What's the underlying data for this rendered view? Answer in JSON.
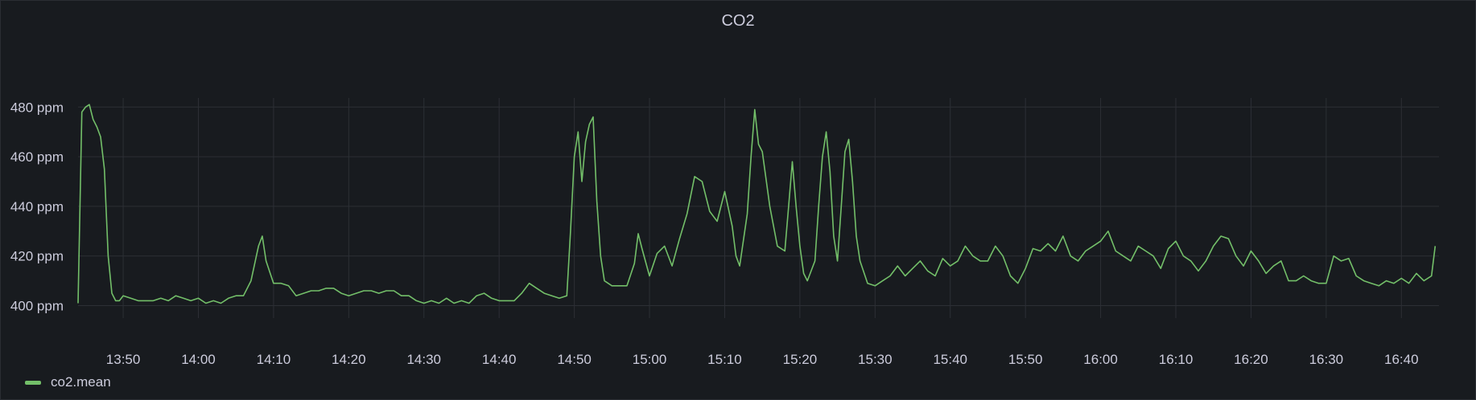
{
  "panel": {
    "title": "CO2"
  },
  "colors": {
    "background": "#181b1f",
    "grid": "#2c2f35",
    "text": "#ccccdc",
    "series": "#73bf69"
  },
  "legend": {
    "label": "co2.mean",
    "placement": "bottom-left"
  },
  "chart_data": {
    "type": "line",
    "title": "CO2",
    "ylabel": "",
    "xlabel": "",
    "unit": "ppm",
    "ylim": [
      395,
      483
    ],
    "xlim": [
      "13:44",
      "16:45"
    ],
    "y_ticks": [
      400,
      420,
      440,
      460,
      480
    ],
    "y_tick_labels": [
      "400 ppm",
      "420 ppm",
      "440 ppm",
      "460 ppm",
      "480 ppm"
    ],
    "x_ticks": [
      "13:50",
      "14:00",
      "14:10",
      "14:20",
      "14:30",
      "14:40",
      "14:50",
      "15:00",
      "15:10",
      "15:20",
      "15:30",
      "15:40",
      "15:50",
      "16:00",
      "16:10",
      "16:20",
      "16:30",
      "16:40"
    ],
    "grid": true,
    "series": [
      {
        "name": "co2.mean",
        "points": [
          [
            "13:44",
            401
          ],
          [
            "13:44.5",
            478
          ],
          [
            "13:45",
            480
          ],
          [
            "13:45.5",
            481
          ],
          [
            "13:46",
            475
          ],
          [
            "13:46.5",
            472
          ],
          [
            "13:47",
            468
          ],
          [
            "13:47.5",
            455
          ],
          [
            "13:48",
            420
          ],
          [
            "13:48.5",
            405
          ],
          [
            "13:49",
            402
          ],
          [
            "13:49.5",
            402
          ],
          [
            "13:50",
            404
          ],
          [
            "13:51",
            403
          ],
          [
            "13:52",
            402
          ],
          [
            "13:53",
            402
          ],
          [
            "13:54",
            402
          ],
          [
            "13:55",
            403
          ],
          [
            "13:56",
            402
          ],
          [
            "13:57",
            404
          ],
          [
            "13:58",
            403
          ],
          [
            "13:59",
            402
          ],
          [
            "14:00",
            403
          ],
          [
            "14:01",
            401
          ],
          [
            "14:02",
            402
          ],
          [
            "14:03",
            401
          ],
          [
            "14:04",
            403
          ],
          [
            "14:05",
            404
          ],
          [
            "14:06",
            404
          ],
          [
            "14:07",
            410
          ],
          [
            "14:08",
            424
          ],
          [
            "14:08.5",
            428
          ],
          [
            "14:09",
            418
          ],
          [
            "14:10",
            409
          ],
          [
            "14:11",
            409
          ],
          [
            "14:12",
            408
          ],
          [
            "14:13",
            404
          ],
          [
            "14:14",
            405
          ],
          [
            "14:15",
            406
          ],
          [
            "14:16",
            406
          ],
          [
            "14:17",
            407
          ],
          [
            "14:18",
            407
          ],
          [
            "14:19",
            405
          ],
          [
            "14:20",
            404
          ],
          [
            "14:21",
            405
          ],
          [
            "14:22",
            406
          ],
          [
            "14:23",
            406
          ],
          [
            "14:24",
            405
          ],
          [
            "14:25",
            406
          ],
          [
            "14:26",
            406
          ],
          [
            "14:27",
            404
          ],
          [
            "14:28",
            404
          ],
          [
            "14:29",
            402
          ],
          [
            "14:30",
            401
          ],
          [
            "14:31",
            402
          ],
          [
            "14:32",
            401
          ],
          [
            "14:33",
            403
          ],
          [
            "14:34",
            401
          ],
          [
            "14:35",
            402
          ],
          [
            "14:36",
            401
          ],
          [
            "14:37",
            404
          ],
          [
            "14:38",
            405
          ],
          [
            "14:39",
            403
          ],
          [
            "14:40",
            402
          ],
          [
            "14:41",
            402
          ],
          [
            "14:42",
            402
          ],
          [
            "14:43",
            405
          ],
          [
            "14:44",
            409
          ],
          [
            "14:45",
            407
          ],
          [
            "14:46",
            405
          ],
          [
            "14:47",
            404
          ],
          [
            "14:48",
            403
          ],
          [
            "14:49",
            404
          ],
          [
            "14:49.5",
            430
          ],
          [
            "14:50",
            460
          ],
          [
            "14:50.5",
            470
          ],
          [
            "14:51",
            450
          ],
          [
            "14:51.5",
            466
          ],
          [
            "14:52",
            473
          ],
          [
            "14:52.5",
            476
          ],
          [
            "14:53",
            442
          ],
          [
            "14:53.5",
            420
          ],
          [
            "14:54",
            410
          ],
          [
            "14:55",
            408
          ],
          [
            "14:56",
            408
          ],
          [
            "14:57",
            408
          ],
          [
            "14:58",
            417
          ],
          [
            "14:58.5",
            429
          ],
          [
            "14:59",
            423
          ],
          [
            "15:00",
            412
          ],
          [
            "15:01",
            421
          ],
          [
            "15:02",
            424
          ],
          [
            "15:03",
            416
          ],
          [
            "15:04",
            427
          ],
          [
            "15:05",
            437
          ],
          [
            "15:06",
            452
          ],
          [
            "15:07",
            450
          ],
          [
            "15:08",
            438
          ],
          [
            "15:09",
            434
          ],
          [
            "15:10",
            446
          ],
          [
            "15:11",
            432
          ],
          [
            "15:11.5",
            420
          ],
          [
            "15:12",
            416
          ],
          [
            "15:13",
            437
          ],
          [
            "15:13.5",
            460
          ],
          [
            "15:14",
            479
          ],
          [
            "15:14.5",
            465
          ],
          [
            "15:15",
            462
          ],
          [
            "15:16",
            440
          ],
          [
            "15:17",
            424
          ],
          [
            "15:18",
            422
          ],
          [
            "15:18.5",
            440
          ],
          [
            "15:19",
            458
          ],
          [
            "15:19.5",
            440
          ],
          [
            "15:20",
            424
          ],
          [
            "15:20.5",
            413
          ],
          [
            "15:21",
            410
          ],
          [
            "15:22",
            418
          ],
          [
            "15:22.5",
            440
          ],
          [
            "15:23",
            460
          ],
          [
            "15:23.5",
            470
          ],
          [
            "15:24",
            454
          ],
          [
            "15:24.5",
            428
          ],
          [
            "15:25",
            418
          ],
          [
            "15:25.5",
            440
          ],
          [
            "15:26",
            462
          ],
          [
            "15:26.5",
            467
          ],
          [
            "15:27",
            450
          ],
          [
            "15:27.5",
            428
          ],
          [
            "15:28",
            418
          ],
          [
            "15:29",
            409
          ],
          [
            "15:30",
            408
          ],
          [
            "15:31",
            410
          ],
          [
            "15:32",
            412
          ],
          [
            "15:33",
            416
          ],
          [
            "15:34",
            412
          ],
          [
            "15:35",
            415
          ],
          [
            "15:36",
            418
          ],
          [
            "15:37",
            414
          ],
          [
            "15:38",
            412
          ],
          [
            "15:39",
            419
          ],
          [
            "15:40",
            416
          ],
          [
            "15:41",
            418
          ],
          [
            "15:42",
            424
          ],
          [
            "15:43",
            420
          ],
          [
            "15:44",
            418
          ],
          [
            "15:45",
            418
          ],
          [
            "15:46",
            424
          ],
          [
            "15:47",
            420
          ],
          [
            "15:48",
            412
          ],
          [
            "15:49",
            409
          ],
          [
            "15:50",
            415
          ],
          [
            "15:51",
            423
          ],
          [
            "15:52",
            422
          ],
          [
            "15:53",
            425
          ],
          [
            "15:54",
            422
          ],
          [
            "15:55",
            428
          ],
          [
            "15:56",
            420
          ],
          [
            "15:57",
            418
          ],
          [
            "15:58",
            422
          ],
          [
            "15:59",
            424
          ],
          [
            "16:00",
            426
          ],
          [
            "16:01",
            430
          ],
          [
            "16:02",
            422
          ],
          [
            "16:03",
            420
          ],
          [
            "16:04",
            418
          ],
          [
            "16:05",
            424
          ],
          [
            "16:06",
            422
          ],
          [
            "16:07",
            420
          ],
          [
            "16:08",
            415
          ],
          [
            "16:09",
            423
          ],
          [
            "16:10",
            426
          ],
          [
            "16:11",
            420
          ],
          [
            "16:12",
            418
          ],
          [
            "16:13",
            414
          ],
          [
            "16:14",
            418
          ],
          [
            "16:15",
            424
          ],
          [
            "16:16",
            428
          ],
          [
            "16:17",
            427
          ],
          [
            "16:18",
            420
          ],
          [
            "16:19",
            416
          ],
          [
            "16:20",
            422
          ],
          [
            "16:21",
            418
          ],
          [
            "16:22",
            413
          ],
          [
            "16:23",
            416
          ],
          [
            "16:24",
            418
          ],
          [
            "16:25",
            410
          ],
          [
            "16:26",
            410
          ],
          [
            "16:27",
            412
          ],
          [
            "16:28",
            410
          ],
          [
            "16:29",
            409
          ],
          [
            "16:30",
            409
          ],
          [
            "16:31",
            420
          ],
          [
            "16:32",
            418
          ],
          [
            "16:33",
            419
          ],
          [
            "16:34",
            412
          ],
          [
            "16:35",
            410
          ],
          [
            "16:36",
            409
          ],
          [
            "16:37",
            408
          ],
          [
            "16:38",
            410
          ],
          [
            "16:39",
            409
          ],
          [
            "16:40",
            411
          ],
          [
            "16:41",
            409
          ],
          [
            "16:42",
            413
          ],
          [
            "16:43",
            410
          ],
          [
            "16:44",
            412
          ],
          [
            "16:44.5",
            424
          ]
        ]
      }
    ]
  }
}
